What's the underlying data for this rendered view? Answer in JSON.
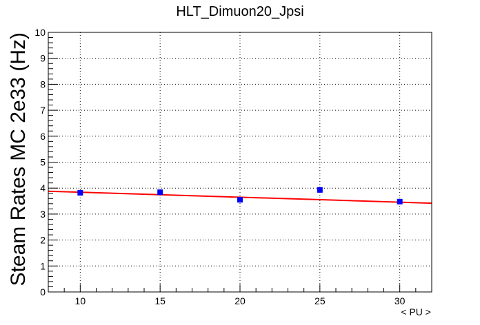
{
  "chart_data": {
    "type": "scatter",
    "title": "HLT_Dimuon20_Jpsi",
    "xlabel": "< PU >",
    "ylabel": "Steam Rates MC 2e33 (Hz)",
    "xlim": [
      8,
      32
    ],
    "ylim": [
      0,
      10
    ],
    "xticks": [
      10,
      15,
      20,
      25,
      30
    ],
    "yticks": [
      0,
      1,
      2,
      3,
      4,
      5,
      6,
      7,
      8,
      9,
      10
    ],
    "grid": true,
    "series": [
      {
        "type": "scatter",
        "color": "#0000ff",
        "marker": "square",
        "x": [
          10,
          15,
          20,
          25,
          30
        ],
        "y": [
          3.82,
          3.84,
          3.55,
          3.93,
          3.48
        ]
      },
      {
        "type": "line",
        "color": "#ff0000",
        "x": [
          8,
          32
        ],
        "y": [
          3.88,
          3.42
        ]
      }
    ]
  }
}
